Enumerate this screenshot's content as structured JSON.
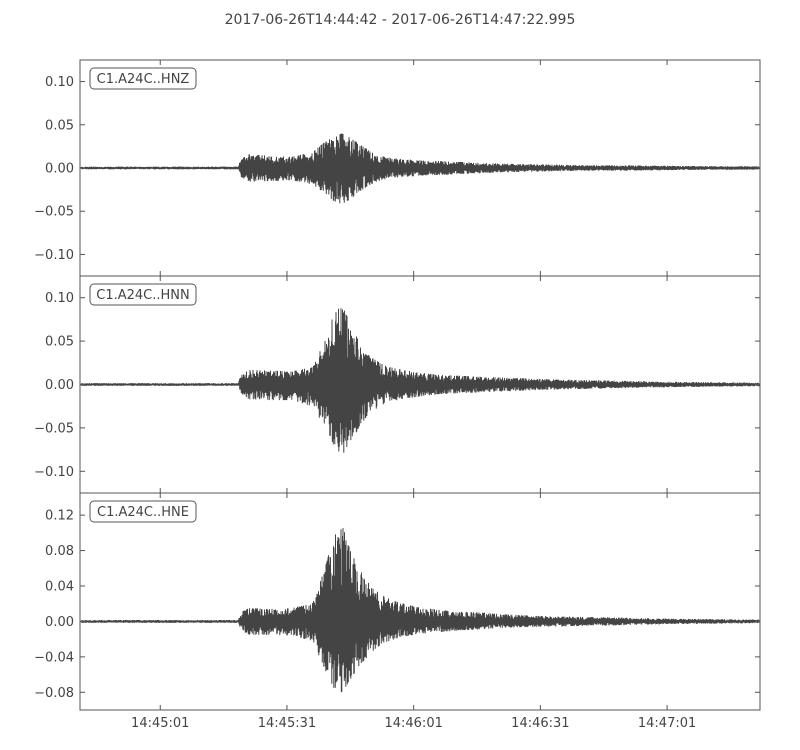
{
  "title": "2017-06-26T14:44:42  -  2017-06-26T14:47:22.995",
  "chart_data": {
    "type": "line",
    "x_tick_labels": [
      "14:45:01",
      "14:45:31",
      "14:46:01",
      "14:46:31",
      "14:47:01"
    ],
    "x_tick_seconds": [
      19,
      49,
      79,
      109,
      139
    ],
    "xlim_seconds": [
      0,
      161
    ],
    "colors": {
      "trace": "#444444",
      "frame": "#555555",
      "label_border": "#555555"
    },
    "traces": [
      {
        "name": "C1.A24C..HNZ",
        "ylim": [
          -0.125,
          0.125
        ],
        "yticks": [
          0.1,
          0.05,
          0.0,
          -0.05,
          -0.1
        ],
        "ytick_labels": [
          "0.10",
          "0.05",
          "0.00",
          "−0.05",
          "−0.10"
        ],
        "envelope": {
          "seconds": [
            0,
            37.5,
            38,
            40,
            45,
            50,
            55,
            58,
            60,
            62,
            64,
            66,
            68,
            70,
            72,
            75,
            80,
            85,
            90,
            95,
            100,
            110,
            120,
            130,
            140,
            150,
            161
          ],
          "max": [
            0.0015,
            0.0015,
            0.01,
            0.016,
            0.014,
            0.013,
            0.018,
            0.03,
            0.036,
            0.04,
            0.035,
            0.028,
            0.022,
            0.016,
            0.013,
            0.011,
            0.009,
            0.008,
            0.007,
            0.006,
            0.005,
            0.004,
            0.003,
            0.003,
            0.0025,
            0.002,
            0.002
          ],
          "min": [
            -0.0015,
            -0.0015,
            -0.01,
            -0.016,
            -0.015,
            -0.014,
            -0.019,
            -0.03,
            -0.038,
            -0.042,
            -0.036,
            -0.028,
            -0.021,
            -0.016,
            -0.013,
            -0.011,
            -0.009,
            -0.008,
            -0.007,
            -0.006,
            -0.005,
            -0.004,
            -0.003,
            -0.003,
            -0.0025,
            -0.002,
            -0.002
          ]
        }
      },
      {
        "name": "C1.A24C..HNN",
        "ylim": [
          -0.125,
          0.125
        ],
        "yticks": [
          0.1,
          0.05,
          0.0,
          -0.05,
          -0.1
        ],
        "ytick_labels": [
          "0.10",
          "0.05",
          "0.00",
          "−0.05",
          "−0.10"
        ],
        "envelope": {
          "seconds": [
            0,
            37.5,
            38,
            40,
            45,
            50,
            55,
            58,
            60,
            62,
            64,
            66,
            68,
            70,
            72,
            75,
            80,
            85,
            90,
            95,
            100,
            110,
            120,
            130,
            140,
            150,
            161
          ],
          "max": [
            0.0015,
            0.0015,
            0.01,
            0.017,
            0.016,
            0.015,
            0.02,
            0.05,
            0.08,
            0.092,
            0.07,
            0.05,
            0.035,
            0.028,
            0.022,
            0.018,
            0.014,
            0.011,
            0.01,
            0.009,
            0.008,
            0.006,
            0.005,
            0.004,
            0.003,
            0.0025,
            0.002
          ],
          "min": [
            -0.0015,
            -0.0015,
            -0.01,
            -0.017,
            -0.018,
            -0.018,
            -0.025,
            -0.05,
            -0.07,
            -0.082,
            -0.065,
            -0.05,
            -0.035,
            -0.028,
            -0.022,
            -0.018,
            -0.014,
            -0.011,
            -0.01,
            -0.009,
            -0.008,
            -0.006,
            -0.005,
            -0.004,
            -0.003,
            -0.0025,
            -0.002
          ]
        }
      },
      {
        "name": "C1.A24C..HNE",
        "ylim": [
          -0.1,
          0.145
        ],
        "yticks": [
          0.12,
          0.08,
          0.04,
          0.0,
          -0.04,
          -0.08
        ],
        "ytick_labels": [
          "0.12",
          "0.08",
          "0.04",
          "0.00",
          "−0.04",
          "−0.08"
        ],
        "envelope": {
          "seconds": [
            0,
            37.5,
            38,
            40,
            45,
            50,
            55,
            58,
            60,
            62,
            64,
            66,
            68,
            70,
            72,
            75,
            80,
            85,
            90,
            95,
            100,
            110,
            120,
            130,
            140,
            150,
            161
          ],
          "max": [
            0.0015,
            0.0015,
            0.01,
            0.015,
            0.014,
            0.015,
            0.02,
            0.06,
            0.095,
            0.11,
            0.08,
            0.06,
            0.045,
            0.035,
            0.028,
            0.022,
            0.016,
            0.013,
            0.011,
            0.01,
            0.008,
            0.006,
            0.005,
            0.004,
            0.003,
            0.0025,
            0.002
          ],
          "min": [
            -0.0015,
            -0.0015,
            -0.01,
            -0.015,
            -0.015,
            -0.016,
            -0.022,
            -0.055,
            -0.075,
            -0.08,
            -0.065,
            -0.05,
            -0.04,
            -0.03,
            -0.024,
            -0.019,
            -0.014,
            -0.012,
            -0.01,
            -0.009,
            -0.007,
            -0.006,
            -0.005,
            -0.004,
            -0.003,
            -0.0025,
            -0.002
          ]
        }
      }
    ]
  }
}
